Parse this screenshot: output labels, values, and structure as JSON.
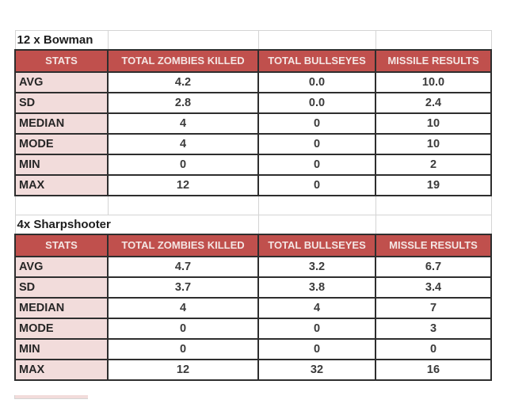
{
  "colors": {
    "header_bg": "#c0504d",
    "header_text": "#f4e6e4",
    "label_bg": "#f2dcdb",
    "border_dark": "#2e2e2e",
    "gridline_light": "#d4d4d4",
    "number_text": "#3b3b3b"
  },
  "tables": [
    {
      "title": "12 x Bowman",
      "columns": [
        "STATS",
        "TOTAL ZOMBIES KILLED",
        "TOTAL BULLSEYES",
        "MISSILE RESULTS"
      ],
      "rows": [
        {
          "label": "AVG",
          "values": [
            "4.2",
            "0.0",
            "10.0"
          ]
        },
        {
          "label": "SD",
          "values": [
            "2.8",
            "0.0",
            "2.4"
          ]
        },
        {
          "label": "MEDIAN",
          "values": [
            "4",
            "0",
            "10"
          ]
        },
        {
          "label": "MODE",
          "values": [
            "4",
            "0",
            "10"
          ]
        },
        {
          "label": "MIN",
          "values": [
            "0",
            "0",
            "2"
          ]
        },
        {
          "label": "MAX",
          "values": [
            "12",
            "0",
            "19"
          ]
        }
      ]
    },
    {
      "title": "4x Sharpshooter",
      "columns": [
        "STATS",
        "TOTAL ZOMBIES KILLED",
        "TOTAL BULLSEYES",
        "MISSLE RESULTS"
      ],
      "rows": [
        {
          "label": "AVG",
          "values": [
            "4.7",
            "3.2",
            "6.7"
          ]
        },
        {
          "label": "SD",
          "values": [
            "3.7",
            "3.8",
            "3.4"
          ]
        },
        {
          "label": "MEDIAN",
          "values": [
            "4",
            "4",
            "7"
          ]
        },
        {
          "label": "MODE",
          "values": [
            "0",
            "0",
            "3"
          ]
        },
        {
          "label": "MIN",
          "values": [
            "0",
            "0",
            "0"
          ]
        },
        {
          "label": "MAX",
          "values": [
            "12",
            "32",
            "16"
          ]
        }
      ]
    }
  ]
}
